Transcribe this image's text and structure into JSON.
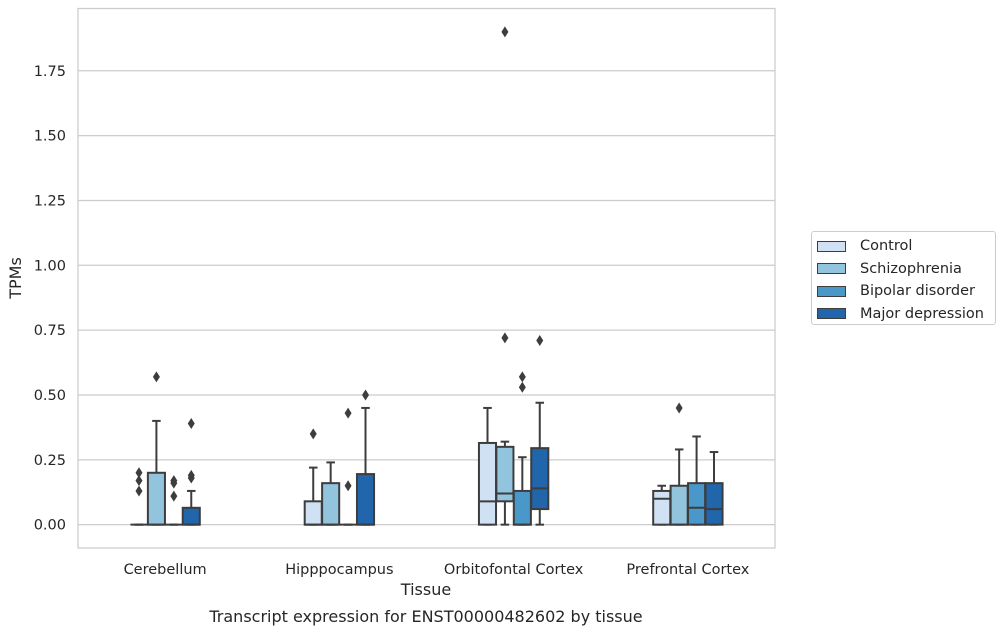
{
  "chart_data": {
    "type": "box",
    "title": "Transcript expression for ENST00000482602 by tissue",
    "xlabel": "Tissue",
    "ylabel": "TPMs",
    "ylim": [
      -0.09,
      1.99
    ],
    "yticks": [
      0.0,
      0.25,
      0.5,
      0.75,
      1.0,
      1.25,
      1.5,
      1.75
    ],
    "ytick_labels": [
      "0.00",
      "0.25",
      "0.50",
      "0.75",
      "1.00",
      "1.25",
      "1.50",
      "1.75"
    ],
    "grid": "horizontal",
    "legend_placement": "right",
    "categories": [
      "Cerebellum",
      "Hipppocampus",
      "Orbitofontal Cortex",
      "Prefrontal Cortex"
    ],
    "series": [
      {
        "name": "Control",
        "color": "#cfe1f2",
        "boxes": [
          {
            "q1": 0,
            "median": 0,
            "q3": 0,
            "whislo": 0,
            "whishi": 0,
            "fliers": [
              0.2,
              0.17,
              0.13
            ]
          },
          {
            "q1": 0,
            "median": 0,
            "q3": 0.09,
            "whislo": 0,
            "whishi": 0.22,
            "fliers": [
              0.35
            ]
          },
          {
            "q1": 0,
            "median": 0.09,
            "q3": 0.315,
            "whislo": 0,
            "whishi": 0.45,
            "fliers": []
          },
          {
            "q1": 0,
            "median": 0.1,
            "q3": 0.13,
            "whislo": 0,
            "whishi": 0.15,
            "fliers": []
          }
        ]
      },
      {
        "name": "Schizophrenia",
        "color": "#93c4de",
        "boxes": [
          {
            "q1": 0,
            "median": 0,
            "q3": 0.2,
            "whislo": 0,
            "whishi": 0.4,
            "fliers": [
              0.57
            ]
          },
          {
            "q1": 0,
            "median": 0,
            "q3": 0.16,
            "whislo": 0,
            "whishi": 0.24,
            "fliers": []
          },
          {
            "q1": 0.09,
            "median": 0.12,
            "q3": 0.3,
            "whislo": 0,
            "whishi": 0.32,
            "fliers": [
              1.9,
              0.72
            ]
          },
          {
            "q1": 0,
            "median": 0,
            "q3": 0.15,
            "whislo": 0,
            "whishi": 0.29,
            "fliers": [
              0.45
            ]
          }
        ]
      },
      {
        "name": "Bipolar disorder",
        "color": "#4a98c9",
        "boxes": [
          {
            "q1": 0,
            "median": 0,
            "q3": 0,
            "whislo": 0,
            "whishi": 0,
            "fliers": [
              0.17,
              0.16,
              0.11
            ]
          },
          {
            "q1": 0,
            "median": 0,
            "q3": 0,
            "whislo": 0,
            "whishi": 0,
            "fliers": [
              0.43,
              0.15
            ]
          },
          {
            "q1": 0,
            "median": 0,
            "q3": 0.13,
            "whislo": 0,
            "whishi": 0.26,
            "fliers": [
              0.57,
              0.53
            ]
          },
          {
            "q1": 0,
            "median": 0.065,
            "q3": 0.16,
            "whislo": 0,
            "whishi": 0.34,
            "fliers": []
          }
        ]
      },
      {
        "name": "Major depression",
        "color": "#2165ab",
        "boxes": [
          {
            "q1": 0,
            "median": 0,
            "q3": 0.065,
            "whislo": 0,
            "whishi": 0.13,
            "fliers": [
              0.39,
              0.19,
              0.18
            ]
          },
          {
            "q1": 0,
            "median": 0,
            "q3": 0.195,
            "whislo": 0,
            "whishi": 0.45,
            "fliers": [
              0.5
            ]
          },
          {
            "q1": 0.06,
            "median": 0.14,
            "q3": 0.295,
            "whislo": 0,
            "whishi": 0.47,
            "fliers": [
              0.71
            ]
          },
          {
            "q1": 0,
            "median": 0.06,
            "q3": 0.16,
            "whislo": 0,
            "whishi": 0.28,
            "fliers": []
          }
        ]
      }
    ]
  }
}
